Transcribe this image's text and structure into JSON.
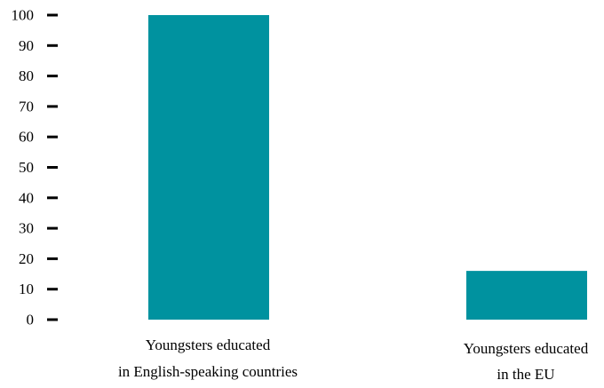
{
  "chart_data": {
    "type": "bar",
    "categories": [
      [
        "Youngsters educated",
        "in English-speaking countries"
      ],
      [
        "Youngsters educated",
        "in the EU"
      ]
    ],
    "values": [
      100,
      16
    ],
    "ylim": [
      0,
      100
    ],
    "yticks": [
      0,
      10,
      20,
      30,
      40,
      50,
      60,
      70,
      80,
      90,
      100
    ],
    "title": "",
    "xlabel": "",
    "ylabel": "",
    "grid": false,
    "colors": {
      "bar": "#00929f",
      "tick": "#000000",
      "text": "#000000"
    }
  }
}
